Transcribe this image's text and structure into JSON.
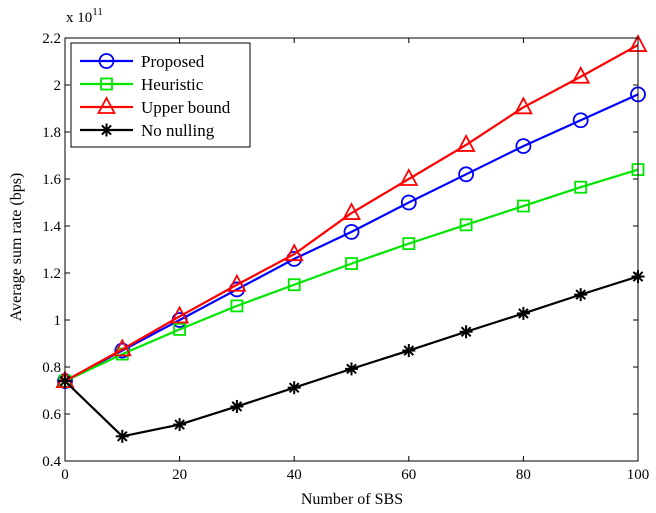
{
  "chart_data": {
    "type": "line",
    "title": "",
    "xlabel": "Number of SBS",
    "ylabel": "Average sum rate (bps)",
    "y_multiplier_label": "x 10",
    "y_multiplier_exponent": "11",
    "xlim": [
      0,
      100
    ],
    "ylim": [
      0.4,
      2.2
    ],
    "xticks": [
      0,
      20,
      40,
      60,
      80,
      100
    ],
    "xtick_labels": [
      "0",
      "20",
      "40",
      "60",
      "80",
      "100"
    ],
    "yticks": [
      0.4,
      0.6,
      0.8,
      1.0,
      1.2,
      1.4,
      1.6,
      1.8,
      2.0,
      2.2
    ],
    "ytick_labels": [
      "0.4",
      "0.6",
      "0.8",
      "1",
      "1.2",
      "1.4",
      "1.6",
      "1.8",
      "2",
      "2.2"
    ],
    "grid": false,
    "legend_position": "top-left",
    "x": [
      0,
      10,
      20,
      30,
      40,
      50,
      60,
      70,
      80,
      90,
      100
    ],
    "series": [
      {
        "name": "Proposed",
        "color": "#0000ff",
        "marker": "circle",
        "values": [
          0.74,
          0.87,
          1.0,
          1.13,
          1.26,
          1.375,
          1.5,
          1.62,
          1.74,
          1.85,
          1.96
        ]
      },
      {
        "name": "Heuristic",
        "color": "#00e600",
        "marker": "square",
        "values": [
          0.74,
          0.855,
          0.96,
          1.06,
          1.15,
          1.24,
          1.325,
          1.405,
          1.485,
          1.565,
          1.64
        ]
      },
      {
        "name": "Upper bound",
        "color": "#ff0000",
        "marker": "triangle",
        "values": [
          0.74,
          0.875,
          1.015,
          1.15,
          1.28,
          1.455,
          1.6,
          1.745,
          1.905,
          2.035,
          2.17
        ]
      },
      {
        "name": "No nulling",
        "color": "#000000",
        "marker": "asterisk",
        "values": [
          0.74,
          0.505,
          0.555,
          0.632,
          0.712,
          0.792,
          0.87,
          0.95,
          1.028,
          1.108,
          1.185
        ]
      }
    ]
  }
}
